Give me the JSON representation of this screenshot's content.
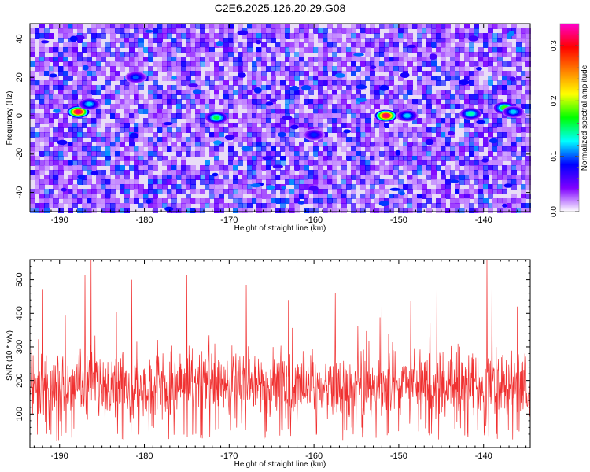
{
  "title": "C2E6.2025.126.20.29.G08",
  "chart_data": [
    {
      "type": "heatmap",
      "xlabel": "Height of straight line (km)",
      "ylabel": "Frequency (Hz)",
      "x_ticks": [
        -190,
        -180,
        -170,
        -160,
        -150,
        -140
      ],
      "y_ticks": [
        -40,
        -20,
        0,
        20,
        40
      ],
      "xlim": [
        -193.5,
        -134.5
      ],
      "ylim": [
        -50,
        48
      ],
      "colorbar": {
        "label": "Normalized spectral amplitude",
        "ticks": [
          0.0,
          0.1,
          0.2,
          0.3
        ],
        "range": [
          0.0,
          0.34
        ],
        "colors": [
          "#ffffff",
          "#7f00ff",
          "#0000ff",
          "#00ffff",
          "#00ff00",
          "#ffff00",
          "#ff7f00",
          "#ff0000",
          "#ff00cc"
        ]
      },
      "hotspots": [
        {
          "x": -187.8,
          "y": 2,
          "value": 0.32
        },
        {
          "x": -186.5,
          "y": 6,
          "value": 0.12
        },
        {
          "x": -171.5,
          "y": -1,
          "value": 0.16
        },
        {
          "x": -151.5,
          "y": 0,
          "value": 0.32
        },
        {
          "x": -149.0,
          "y": 0,
          "value": 0.12
        },
        {
          "x": -141.5,
          "y": 1,
          "value": 0.14
        },
        {
          "x": -137.5,
          "y": 4,
          "value": 0.18
        },
        {
          "x": -136.5,
          "y": 2,
          "value": 0.12
        },
        {
          "x": -181.0,
          "y": 20,
          "value": 0.1
        },
        {
          "x": -160.0,
          "y": -10,
          "value": 0.09
        }
      ]
    },
    {
      "type": "line",
      "xlabel": "Height of straight line (km)",
      "ylabel": "SNR (10 * v/v)",
      "x_ticks": [
        -190,
        -180,
        -170,
        -160,
        -150,
        -140
      ],
      "y_ticks": [
        100,
        200,
        300,
        400,
        500
      ],
      "xlim": [
        -193.5,
        -134.5
      ],
      "ylim": [
        0,
        560
      ],
      "series": [
        {
          "color": "#f03030",
          "x_start": -193.5,
          "x_end": -134.5,
          "mean": 150,
          "typical_range": [
            40,
            330
          ],
          "peaks": [
            {
              "x": -186.3,
              "y": 560
            },
            {
              "x": -139.6,
              "y": 560
            },
            {
              "x": -187.0,
              "y": 515
            },
            {
              "x": -175.0,
              "y": 515
            },
            {
              "x": -181.5,
              "y": 500
            },
            {
              "x": -168.0,
              "y": 485
            },
            {
              "x": -139.0,
              "y": 480
            },
            {
              "x": -157.5,
              "y": 460
            },
            {
              "x": -145.5,
              "y": 470
            },
            {
              "x": -192.0,
              "y": 470
            },
            {
              "x": -136.0,
              "y": 420
            },
            {
              "x": -163.0,
              "y": 440
            },
            {
              "x": -152.0,
              "y": 420
            }
          ]
        }
      ]
    }
  ]
}
